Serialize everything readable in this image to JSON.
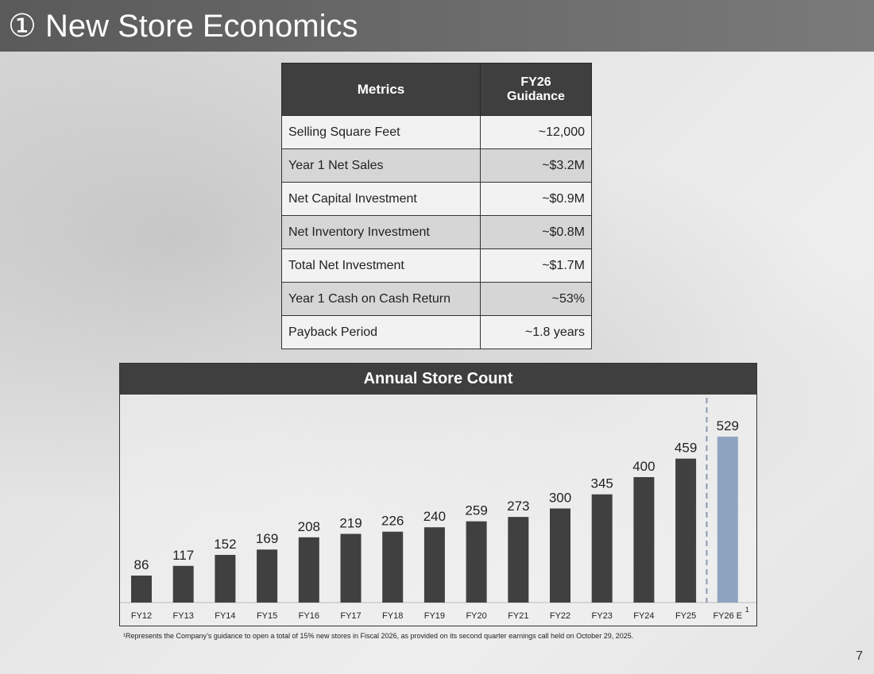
{
  "title": "① New Store Economics",
  "table": {
    "headers": [
      "Metrics",
      "FY26\nGuidance"
    ],
    "rows": [
      [
        "Selling Square Feet",
        "~12,000"
      ],
      [
        "Year 1 Net Sales",
        "~$3.2M"
      ],
      [
        "Net Capital Investment",
        "~$0.9M"
      ],
      [
        "Net Inventory Investment",
        "~$0.8M"
      ],
      [
        "Total Net Investment",
        "~$1.7M"
      ],
      [
        "Year 1 Cash on Cash Return",
        "~53%"
      ],
      [
        "Payback Period",
        "~1.8 years"
      ]
    ]
  },
  "chart_data": {
    "type": "bar",
    "title": "Annual Store Count",
    "categories": [
      "FY12",
      "FY13",
      "FY14",
      "FY15",
      "FY16",
      "FY17",
      "FY18",
      "FY19",
      "FY20",
      "FY21",
      "FY22",
      "FY23",
      "FY24",
      "FY25",
      "FY26 E"
    ],
    "values": [
      86,
      117,
      152,
      169,
      208,
      219,
      226,
      240,
      259,
      273,
      300,
      345,
      400,
      459,
      529
    ],
    "colors": {
      "actual": "#404040",
      "estimate": "#8ea3c0"
    },
    "footnote_marker": "1",
    "grid": false
  },
  "footnote": "¹Represents the Company’s guidance to open a total of 15% new stores in Fiscal 2026, as provided on its second quarter earnings call held on October 29, 2025.",
  "page_number": "7"
}
